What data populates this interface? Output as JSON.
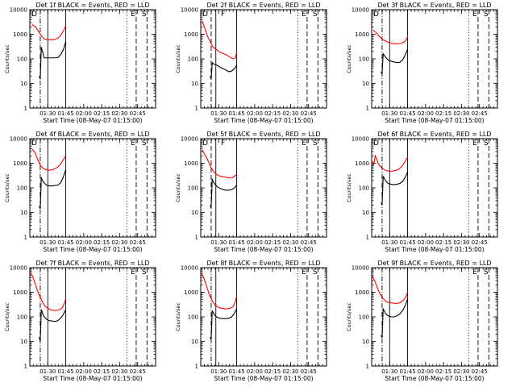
{
  "chart_data": [
    {
      "type": "line",
      "title": "Det 1f BLACK = Events, RED = LLD",
      "xlabel": "Start Time (08-May-07 01:15:00)",
      "ylabel": "Counts/sec",
      "x_ticks": [
        "01:30",
        "01:45",
        "02:00",
        "02:15",
        "02:30",
        "02:45"
      ],
      "y_ticks": [
        "1",
        "10",
        "100",
        "1000",
        "10000"
      ],
      "ylim": [
        1,
        10000
      ],
      "y_scale": "log",
      "xlim": [
        1.25,
        3.0
      ],
      "grid": false,
      "markers": {
        "left_label": "D",
        "right_labels": [
          "E",
          "S"
        ]
      },
      "vlines": [
        {
          "x": 1.395,
          "style": "dashdot"
        },
        {
          "x": 1.5,
          "style": "solid"
        },
        {
          "x": 1.75,
          "style": "solid"
        },
        {
          "x": 2.6,
          "style": "dotted"
        },
        {
          "x": 2.73,
          "style": "dashed"
        },
        {
          "x": 2.88,
          "style": "dashed"
        }
      ],
      "series": [
        {
          "color": "#ff0000",
          "x": [
            1.28,
            1.33,
            1.38,
            1.42,
            1.45,
            1.5,
            1.55,
            1.6,
            1.64,
            1.68,
            1.72,
            1.75
          ],
          "y": [
            2500,
            2000,
            1200,
            800,
            650,
            600,
            600,
            620,
            700,
            900,
            1400,
            2200
          ]
        },
        {
          "color": "#000000",
          "x": [
            1.38,
            1.395,
            1.41,
            1.43,
            1.45,
            1.48,
            1.52,
            1.58,
            1.64,
            1.68,
            1.72,
            1.75
          ],
          "y": [
            20,
            15,
            300,
            180,
            110,
            110,
            110,
            110,
            112,
            150,
            250,
            500
          ]
        }
      ]
    },
    {
      "type": "line",
      "title": "Det 2f BLACK = Events, RED = LLD",
      "xlabel": "Start Time (08-May-07 01:15:00)",
      "ylabel": "Counts/sec",
      "x_ticks": [
        "01:30",
        "01:45",
        "02:00",
        "02:15",
        "02:30",
        "02:45"
      ],
      "y_ticks": [
        "1",
        "10",
        "100",
        "1000",
        "10000"
      ],
      "ylim": [
        1,
        10000
      ],
      "y_scale": "log",
      "xlim": [
        1.25,
        3.0
      ],
      "grid": false,
      "markers": {
        "left_label": "D",
        "mid_label": "F",
        "right_labels": [
          "E",
          "S"
        ]
      },
      "vlines": [
        {
          "x": 1.395,
          "style": "dashed"
        },
        {
          "x": 1.46,
          "style": "solid"
        },
        {
          "x": 1.75,
          "style": "solid"
        },
        {
          "x": 2.6,
          "style": "dotted"
        },
        {
          "x": 2.73,
          "style": "dashed"
        },
        {
          "x": 2.88,
          "style": "dashed"
        }
      ],
      "series": [
        {
          "color": "#ff0000",
          "x": [
            1.27,
            1.3,
            1.34,
            1.38,
            1.42,
            1.46,
            1.5,
            1.55,
            1.6,
            1.65,
            1.7,
            1.73,
            1.75
          ],
          "y": [
            3500,
            2000,
            900,
            500,
            300,
            250,
            200,
            170,
            150,
            120,
            100,
            110,
            180
          ]
        },
        {
          "color": "#000000",
          "x": [
            1.38,
            1.395,
            1.41,
            1.44,
            1.48,
            1.52,
            1.56,
            1.6,
            1.64,
            1.68,
            1.72,
            1.75
          ],
          "y": [
            20,
            15,
            70,
            60,
            55,
            45,
            40,
            35,
            30,
            32,
            40,
            55
          ]
        }
      ]
    },
    {
      "type": "line",
      "title": "Det 3f BLACK = Events, RED = LLD",
      "xlabel": "Start Time (08-May-07 01:15:00)",
      "ylabel": "Counts/sec",
      "x_ticks": [
        "01:30",
        "01:45",
        "02:00",
        "02:15",
        "02:30",
        "02:45"
      ],
      "y_ticks": [
        "1",
        "10",
        "100",
        "1000",
        "10000"
      ],
      "ylim": [
        1,
        10000
      ],
      "y_scale": "log",
      "xlim": [
        1.25,
        3.0
      ],
      "grid": false,
      "markers": {
        "left_label": "D",
        "right_labels": [
          "E",
          "S"
        ]
      },
      "vlines": [
        {
          "x": 1.395,
          "style": "dashdot"
        },
        {
          "x": 1.5,
          "style": "solid"
        },
        {
          "x": 1.75,
          "style": "solid"
        },
        {
          "x": 2.6,
          "style": "dotted"
        },
        {
          "x": 2.73,
          "style": "dashed"
        },
        {
          "x": 2.88,
          "style": "dashed"
        }
      ],
      "series": [
        {
          "color": "#ff0000",
          "x": [
            1.27,
            1.32,
            1.37,
            1.41,
            1.45,
            1.5,
            1.55,
            1.6,
            1.65,
            1.7,
            1.73,
            1.75
          ],
          "y": [
            1500,
            1100,
            750,
            600,
            520,
            450,
            420,
            410,
            420,
            480,
            600,
            800
          ]
        },
        {
          "color": "#000000",
          "x": [
            1.38,
            1.395,
            1.41,
            1.44,
            1.48,
            1.52,
            1.56,
            1.6,
            1.64,
            1.68,
            1.72,
            1.75
          ],
          "y": [
            30,
            25,
            160,
            120,
            90,
            80,
            75,
            70,
            72,
            90,
            150,
            250
          ]
        }
      ]
    },
    {
      "type": "line",
      "title": "Det 4f BLACK = Events, RED = LLD",
      "xlabel": "Start Time (08-May-07 01:15:00)",
      "ylabel": "Counts/sec",
      "x_ticks": [
        "01:30",
        "01:45",
        "02:00",
        "02:15",
        "02:30",
        "02:45"
      ],
      "y_ticks": [
        "1",
        "10",
        "100",
        "1000",
        "10000"
      ],
      "ylim": [
        1,
        10000
      ],
      "y_scale": "log",
      "xlim": [
        1.25,
        3.0
      ],
      "grid": false,
      "markers": {
        "left_label": "D",
        "right_labels": [
          "E",
          "S"
        ]
      },
      "vlines": [
        {
          "x": 1.395,
          "style": "dashdot"
        },
        {
          "x": 1.5,
          "style": "solid"
        },
        {
          "x": 1.75,
          "style": "solid"
        },
        {
          "x": 2.6,
          "style": "dotted"
        },
        {
          "x": 2.73,
          "style": "dashed"
        },
        {
          "x": 2.88,
          "style": "dashed"
        }
      ],
      "series": [
        {
          "color": "#ff0000",
          "x": [
            1.27,
            1.32,
            1.36,
            1.4,
            1.44,
            1.48,
            1.52,
            1.57,
            1.62,
            1.67,
            1.71,
            1.75
          ],
          "y": [
            4000,
            2800,
            1400,
            800,
            600,
            550,
            520,
            550,
            650,
            850,
            1300,
            2000
          ]
        },
        {
          "color": "#000000",
          "x": [
            1.38,
            1.395,
            1.41,
            1.44,
            1.48,
            1.52,
            1.56,
            1.6,
            1.64,
            1.68,
            1.72,
            1.75
          ],
          "y": [
            18,
            14,
            250,
            170,
            130,
            120,
            120,
            125,
            130,
            160,
            300,
            550
          ]
        }
      ]
    },
    {
      "type": "line",
      "title": "Det 5f BLACK = Events, RED = LLD",
      "xlabel": "Start Time (08-May-07 01:15:00)",
      "ylabel": "Counts/sec",
      "x_ticks": [
        "01:30",
        "01:45",
        "02:00",
        "02:15",
        "02:30",
        "02:45"
      ],
      "y_ticks": [
        "1",
        "10",
        "100",
        "1000",
        "10000"
      ],
      "ylim": [
        1,
        10000
      ],
      "y_scale": "log",
      "xlim": [
        1.25,
        3.0
      ],
      "grid": false,
      "markers": {
        "left_label": "D",
        "mid_label": "F",
        "right_labels": [
          "E",
          "S"
        ]
      },
      "vlines": [
        {
          "x": 1.395,
          "style": "dashed"
        },
        {
          "x": 1.46,
          "style": "solid"
        },
        {
          "x": 1.75,
          "style": "solid"
        },
        {
          "x": 2.6,
          "style": "dotted"
        },
        {
          "x": 2.73,
          "style": "dashed"
        },
        {
          "x": 2.88,
          "style": "dashed"
        }
      ],
      "series": [
        {
          "color": "#ff0000",
          "x": [
            1.27,
            1.31,
            1.35,
            1.39,
            1.43,
            1.47,
            1.52,
            1.57,
            1.62,
            1.67,
            1.71,
            1.75
          ],
          "y": [
            3500,
            2200,
            1300,
            700,
            450,
            350,
            300,
            280,
            260,
            250,
            280,
            350
          ]
        },
        {
          "color": "#000000",
          "x": [
            1.38,
            1.395,
            1.41,
            1.44,
            1.48,
            1.52,
            1.56,
            1.6,
            1.64,
            1.68,
            1.72,
            1.75
          ],
          "y": [
            20,
            15,
            220,
            150,
            110,
            95,
            85,
            80,
            80,
            85,
            100,
            130
          ]
        }
      ]
    },
    {
      "type": "line",
      "title": "Det 6f BLACK = Events, RED = LLD",
      "xlabel": "Start Time (08-May-07 01:15:00)",
      "ylabel": "Counts/sec",
      "x_ticks": [
        "01:30",
        "01:45",
        "02:00",
        "02:15",
        "02:30",
        "02:45"
      ],
      "y_ticks": [
        "1",
        "10",
        "100",
        "1000",
        "10000"
      ],
      "ylim": [
        1,
        10000
      ],
      "y_scale": "log",
      "xlim": [
        1.25,
        3.0
      ],
      "grid": false,
      "markers": {
        "left_label": "D",
        "right_labels": [
          "E",
          "S"
        ]
      },
      "vlines": [
        {
          "x": 1.395,
          "style": "dashdot"
        },
        {
          "x": 1.5,
          "style": "solid"
        },
        {
          "x": 1.75,
          "style": "solid"
        },
        {
          "x": 2.6,
          "style": "dotted"
        },
        {
          "x": 2.73,
          "style": "dashed"
        },
        {
          "x": 2.88,
          "style": "dashed"
        }
      ],
      "series": [
        {
          "color": "#ff0000",
          "x": [
            1.26,
            1.28,
            1.3,
            1.32,
            1.34,
            1.36,
            1.38,
            1.41,
            1.44,
            1.48,
            1.52,
            1.57,
            1.62,
            1.67,
            1.71,
            1.75
          ],
          "y": [
            1200,
            900,
            2000,
            1500,
            1000,
            800,
            700,
            600,
            520,
            480,
            470,
            500,
            550,
            750,
            1100,
            1800
          ]
        },
        {
          "color": "#000000",
          "x": [
            1.38,
            1.395,
            1.41,
            1.44,
            1.48,
            1.52,
            1.56,
            1.6,
            1.64,
            1.68,
            1.72,
            1.75
          ],
          "y": [
            25,
            20,
            300,
            200,
            150,
            140,
            135,
            140,
            150,
            180,
            280,
            450
          ]
        }
      ]
    },
    {
      "type": "line",
      "title": "Det 7f BLACK = Events, RED = LLD",
      "xlabel": "Start Time (08-May-07 01:15:00)",
      "ylabel": "Counts/sec",
      "x_ticks": [
        "01:30",
        "01:45",
        "02:00",
        "02:15",
        "02:30",
        "02:45"
      ],
      "y_ticks": [
        "1",
        "10",
        "100",
        "1000",
        "10000"
      ],
      "ylim": [
        1,
        10000
      ],
      "y_scale": "log",
      "xlim": [
        1.25,
        3.0
      ],
      "grid": false,
      "markers": {
        "right_labels": [
          "E",
          "S"
        ]
      },
      "vlines": [
        {
          "x": 1.395,
          "style": "dashdot"
        },
        {
          "x": 1.5,
          "style": "solid"
        },
        {
          "x": 1.75,
          "style": "solid"
        },
        {
          "x": 2.6,
          "style": "dotted"
        },
        {
          "x": 2.73,
          "style": "dashed"
        },
        {
          "x": 2.88,
          "style": "dashed"
        }
      ],
      "series": [
        {
          "color": "#ff0000",
          "x": [
            1.26,
            1.29,
            1.33,
            1.37,
            1.41,
            1.45,
            1.5,
            1.55,
            1.6,
            1.65,
            1.7,
            1.73,
            1.75
          ],
          "y": [
            6000,
            4500,
            2000,
            900,
            500,
            300,
            220,
            190,
            180,
            190,
            230,
            350,
            550
          ]
        },
        {
          "color": "#000000",
          "x": [
            1.38,
            1.395,
            1.41,
            1.44,
            1.48,
            1.52,
            1.56,
            1.6,
            1.64,
            1.68,
            1.72,
            1.75
          ],
          "y": [
            15,
            10,
            200,
            110,
            80,
            70,
            68,
            65,
            70,
            90,
            130,
            200
          ]
        }
      ]
    },
    {
      "type": "line",
      "title": "Det 8f BLACK = Events, RED = LLD",
      "xlabel": "Start Time (08-May-07 01:15:00)",
      "ylabel": "Counts/sec",
      "x_ticks": [
        "01:30",
        "01:45",
        "02:00",
        "02:15",
        "02:30",
        "02:45"
      ],
      "y_ticks": [
        "1",
        "10",
        "100",
        "1000",
        "10000"
      ],
      "ylim": [
        1,
        10000
      ],
      "y_scale": "log",
      "xlim": [
        1.25,
        3.0
      ],
      "grid": false,
      "markers": {
        "right_labels": [
          "E",
          "S"
        ]
      },
      "vlines": [
        {
          "x": 1.395,
          "style": "dashdot"
        },
        {
          "x": 1.46,
          "style": "solid"
        },
        {
          "x": 1.75,
          "style": "solid"
        },
        {
          "x": 2.6,
          "style": "dotted"
        },
        {
          "x": 2.73,
          "style": "dashed"
        },
        {
          "x": 2.88,
          "style": "dashed"
        }
      ],
      "series": [
        {
          "color": "#ff0000",
          "x": [
            1.26,
            1.29,
            1.33,
            1.37,
            1.41,
            1.45,
            1.5,
            1.55,
            1.6,
            1.65,
            1.7,
            1.73,
            1.75
          ],
          "y": [
            6000,
            4000,
            1800,
            800,
            450,
            300,
            240,
            220,
            210,
            220,
            260,
            400,
            700
          ]
        },
        {
          "color": "#000000",
          "x": [
            1.38,
            1.395,
            1.41,
            1.44,
            1.48,
            1.52,
            1.56,
            1.6,
            1.64,
            1.68,
            1.72,
            1.75
          ],
          "y": [
            15,
            12,
            180,
            120,
            95,
            88,
            85,
            85,
            88,
            100,
            140,
            220
          ]
        }
      ]
    },
    {
      "type": "line",
      "title": "Det 9f BLACK = Events, RED = LLD",
      "xlabel": "Start Time (08-May-07 01:15:00)",
      "ylabel": "Counts/sec",
      "x_ticks": [
        "01:30",
        "01:45",
        "02:00",
        "02:15",
        "02:30",
        "02:45"
      ],
      "y_ticks": [
        "1",
        "10",
        "100",
        "1000",
        "10000"
      ],
      "ylim": [
        1,
        10000
      ],
      "y_scale": "log",
      "xlim": [
        1.25,
        3.0
      ],
      "grid": false,
      "markers": {
        "right_labels": [
          "E",
          "S"
        ]
      },
      "vlines": [
        {
          "x": 1.395,
          "style": "dashdot"
        },
        {
          "x": 1.5,
          "style": "solid"
        },
        {
          "x": 1.75,
          "style": "solid"
        },
        {
          "x": 2.6,
          "style": "dotted"
        },
        {
          "x": 2.73,
          "style": "dashed"
        },
        {
          "x": 2.88,
          "style": "dashed"
        }
      ],
      "series": [
        {
          "color": "#ff0000",
          "x": [
            1.26,
            1.29,
            1.33,
            1.37,
            1.41,
            1.45,
            1.5,
            1.55,
            1.6,
            1.65,
            1.7,
            1.73,
            1.75
          ],
          "y": [
            4500,
            3000,
            1500,
            800,
            550,
            420,
            380,
            360,
            350,
            380,
            500,
            700,
            1000
          ]
        },
        {
          "color": "#000000",
          "x": [
            1.38,
            1.395,
            1.41,
            1.44,
            1.48,
            1.52,
            1.56,
            1.6,
            1.64,
            1.68,
            1.72,
            1.75
          ],
          "y": [
            18,
            14,
            220,
            140,
            110,
            100,
            100,
            110,
            130,
            180,
            300,
            550
          ]
        }
      ]
    }
  ]
}
